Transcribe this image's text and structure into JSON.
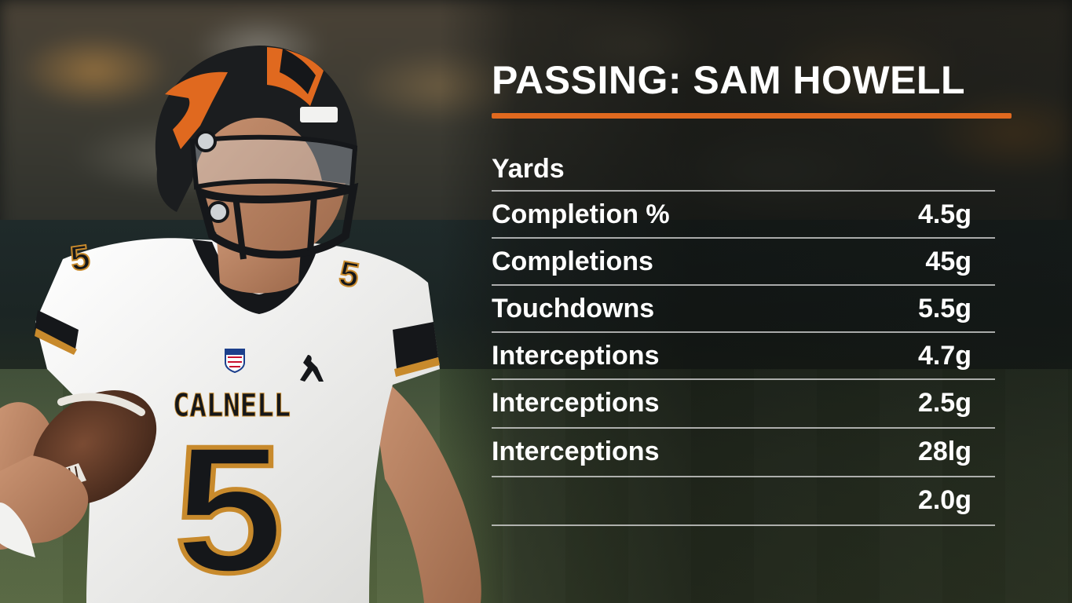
{
  "title": "PASSING: SAM HOWELL",
  "header_label": "Yards",
  "rows": [
    {
      "label": "Completion %",
      "value": "4.5g"
    },
    {
      "label": "Completions",
      "value": "45g"
    },
    {
      "label": "Touchdowns",
      "value": "5.5g"
    },
    {
      "label": "Interceptions",
      "value": "4.7g"
    },
    {
      "label": "Interceptions",
      "value": "2.5g"
    },
    {
      "label": "Interceptions",
      "value": "28lg"
    },
    {
      "label": "",
      "value": "2.0g"
    }
  ],
  "jersey": {
    "team": "CALNELL",
    "number": "5",
    "shoulder_number": "5",
    "league_badge": "NFL"
  },
  "colors": {
    "accent": "#e0691f",
    "jersey_gold": "#c88a2c",
    "jersey_black": "#15171a",
    "jersey_white": "#f2f2f0"
  }
}
